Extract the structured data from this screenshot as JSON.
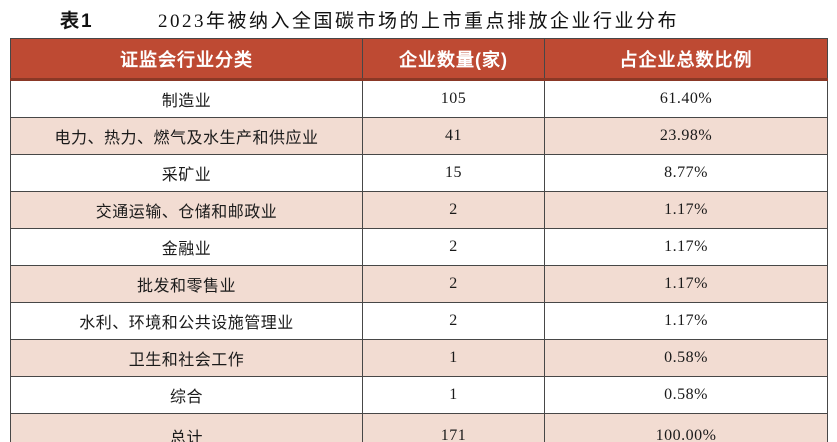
{
  "title": {
    "label": "表1",
    "text": "2023年被纳入全国碳市场的上市重点排放企业行业分布"
  },
  "table": {
    "headers": [
      "证监会行业分类",
      "企业数量(家)",
      "占企业总数比例"
    ],
    "rows": [
      {
        "industry": "制造业",
        "count": "105",
        "percent": "61.40%"
      },
      {
        "industry": "电力、热力、燃气及水生产和供应业",
        "count": "41",
        "percent": "23.98%"
      },
      {
        "industry": "采矿业",
        "count": "15",
        "percent": "8.77%"
      },
      {
        "industry": "交通运输、仓储和邮政业",
        "count": "2",
        "percent": "1.17%"
      },
      {
        "industry": "金融业",
        "count": "2",
        "percent": "1.17%"
      },
      {
        "industry": "批发和零售业",
        "count": "2",
        "percent": "1.17%"
      },
      {
        "industry": "水利、环境和公共设施管理业",
        "count": "2",
        "percent": "1.17%"
      },
      {
        "industry": "卫生和社会工作",
        "count": "1",
        "percent": "0.58%"
      },
      {
        "industry": "综合",
        "count": "1",
        "percent": "0.58%"
      },
      {
        "industry": "总计",
        "count": "171",
        "percent": "100.00%"
      }
    ]
  },
  "colors": {
    "header_bg": "#be4a33",
    "header_border": "#8a3826",
    "alt_row_bg": "#f2dcd2",
    "border": "#474747",
    "header_text": "#ffffff"
  }
}
